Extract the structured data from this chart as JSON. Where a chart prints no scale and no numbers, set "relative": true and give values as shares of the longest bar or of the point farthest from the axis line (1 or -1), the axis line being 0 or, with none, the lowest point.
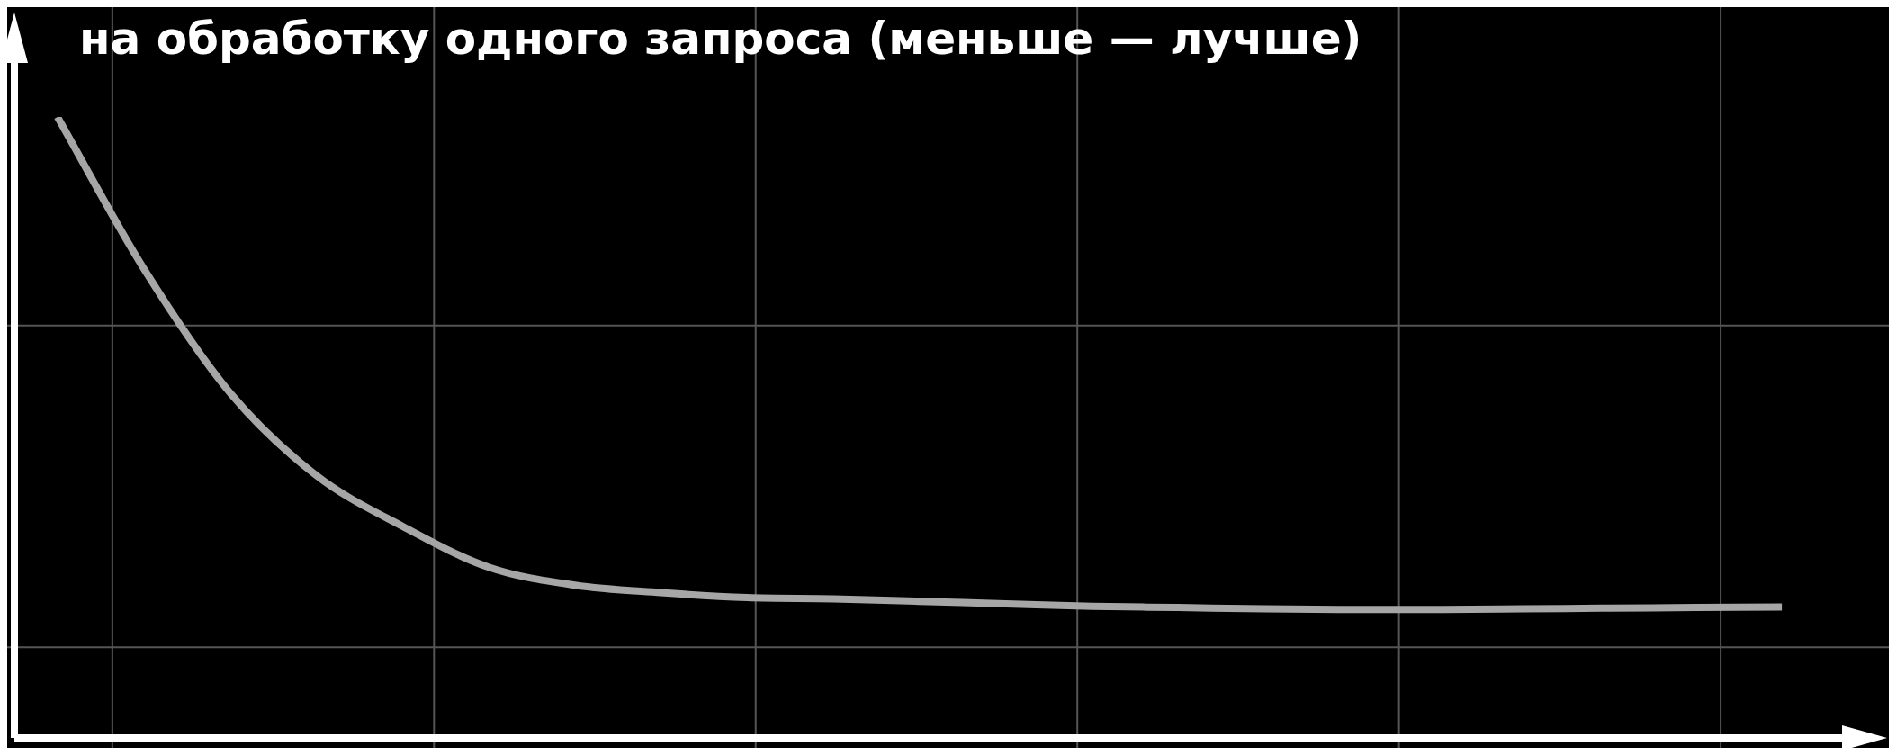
{
  "chart_data": {
    "type": "line",
    "title": "на обработку одного запроса (меньше — лучше)",
    "relative": true,
    "grid": true,
    "categories": [
      null,
      null,
      null,
      null,
      null,
      null,
      null,
      null,
      null,
      null,
      null,
      null,
      null,
      null,
      null,
      null,
      null,
      null,
      null,
      null,
      null
    ],
    "series": [
      {
        "color": "#a6a6a6",
        "values": [
          1,
          0.756,
          0.556,
          0.423,
          0.341,
          0.275,
          0.246,
          0.234,
          0.226,
          0.224,
          0.22,
          0.216,
          0.212,
          0.21,
          0.208,
          0.207,
          0.207,
          0.208,
          0.209,
          0.21,
          0.211
        ]
      }
    ]
  }
}
